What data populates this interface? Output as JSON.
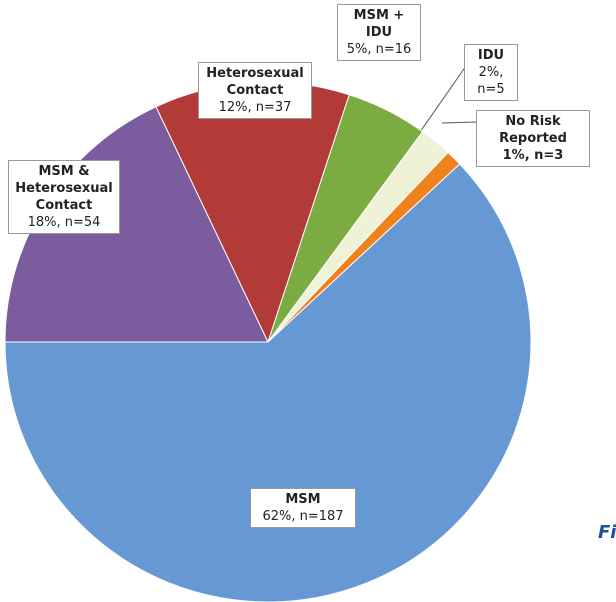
{
  "chart_data": {
    "type": "pie",
    "categories": [
      "MSM & Heterosexual Contact",
      "Heterosexual Contact",
      "MSM + IDU",
      "IDU",
      "No Risk Reported",
      "MSM"
    ],
    "values": [
      18,
      12,
      5,
      2,
      1,
      62
    ],
    "value_labels": [
      "18%, n=54",
      "12%, n=37",
      "5%, n=16",
      "2%, n=5",
      "1%, n=3",
      "62%, n=187"
    ],
    "colors": [
      "#7b5c9f",
      "#b23b37",
      "#7cab42",
      "#eef3d8",
      "#f0821d",
      "#6699d3"
    ],
    "annotation": "Fi"
  }
}
